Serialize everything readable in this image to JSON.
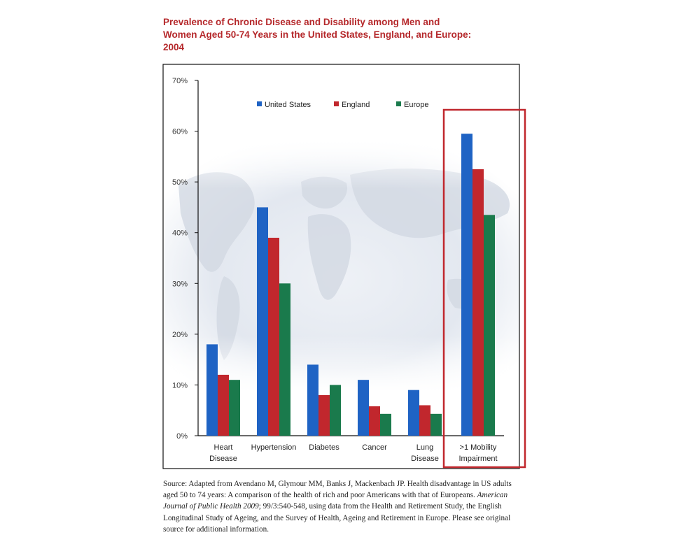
{
  "page": {
    "title_line1": "Prevalence of Chronic Disease and Disability among Men and",
    "title_line2": "Women Aged 50-74 Years in the United States, England, and Europe:",
    "title_line3": "2004",
    "source": {
      "pre": "Source: Adapted from Avendano M, Glymour MM, Banks J, Mackenbach JP. Health disadvantage in US adults aged 50 to 74 years: A comparison of the health of rich and poor Americans with that of Europeans. ",
      "journal": "American Journal of Public Health 2009",
      "post": "; 99/3:540-548, using data from the Health and Retirement Study, the English Longitudinal Study of Ageing, and the Survey of Health, Ageing and Retirement in Europe. Please see original source for additional information."
    }
  },
  "chart_data": {
    "type": "bar",
    "title": "Prevalence of Chronic Disease and Disability among Men and Women Aged 50-74 Years in the United States, England, and Europe: 2004",
    "categories": [
      [
        "Heart",
        "Disease"
      ],
      [
        "Hypertension"
      ],
      [
        "Diabetes"
      ],
      [
        "Cancer"
      ],
      [
        "Lung",
        "Disease"
      ],
      [
        ">1 Mobility",
        "Impairment"
      ]
    ],
    "series": [
      {
        "name": "United States",
        "color": "#1f63c4",
        "values": [
          18,
          45,
          14,
          11,
          9,
          59.5
        ]
      },
      {
        "name": "England",
        "color": "#c1272d",
        "values": [
          12,
          39,
          8,
          5.8,
          6,
          52.5
        ]
      },
      {
        "name": "Europe",
        "color": "#1a7a4c",
        "values": [
          11,
          30,
          10,
          4.3,
          4.3,
          43.5
        ]
      }
    ],
    "yticks": [
      "0%",
      "10%",
      "20%",
      "30%",
      "40%",
      "50%",
      "60%",
      "70%"
    ],
    "ylim": [
      0,
      70
    ],
    "grid": false,
    "legend": "top-center",
    "highlight": {
      "category": ">1 Mobility Impairment",
      "color": "#c0272d"
    }
  }
}
